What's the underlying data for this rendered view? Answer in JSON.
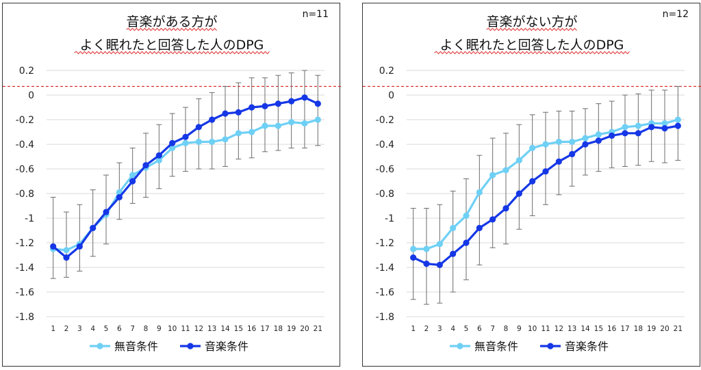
{
  "chart_data": [
    {
      "type": "line",
      "title_lines": [
        "音楽がある方が",
        "よく眠れたと回答した人のDPG"
      ],
      "annotation": "n=11",
      "x": [
        1,
        2,
        3,
        4,
        5,
        6,
        7,
        8,
        9,
        10,
        11,
        12,
        13,
        14,
        15,
        16,
        17,
        18,
        19,
        20,
        21
      ],
      "ylim": [
        -1.8,
        0.2
      ],
      "yticks": [
        "0.2",
        "0",
        "-0.2",
        "-0.4",
        "-0.6",
        "-0.8",
        "-1",
        "-1.2",
        "-1.4",
        "-1.6",
        "-1.8"
      ],
      "reference_line": 0.07,
      "legend_position": "bottom",
      "series": [
        {
          "name": "無音条件",
          "color": "#6fd0f5",
          "values": [
            -1.25,
            -1.26,
            -1.21,
            -1.08,
            -0.97,
            -0.79,
            -0.65,
            -0.59,
            -0.53,
            -0.43,
            -0.39,
            -0.38,
            -0.38,
            -0.36,
            -0.31,
            -0.3,
            -0.25,
            -0.25,
            -0.22,
            -0.23,
            -0.2
          ]
        },
        {
          "name": "音楽条件",
          "color": "#1537e6",
          "values": [
            -1.23,
            -1.32,
            -1.23,
            -1.08,
            -0.95,
            -0.83,
            -0.7,
            -0.57,
            -0.49,
            -0.39,
            -0.34,
            -0.26,
            -0.2,
            -0.15,
            -0.14,
            -0.1,
            -0.09,
            -0.07,
            -0.05,
            -0.02,
            -0.07
          ],
          "error_upper": [
            -0.83,
            -0.95,
            -0.89,
            -0.77,
            -0.65,
            -0.55,
            -0.43,
            -0.31,
            -0.24,
            -0.15,
            -0.1,
            -0.03,
            0.02,
            0.07,
            0.1,
            0.14,
            0.14,
            0.16,
            0.18,
            0.2,
            0.16
          ],
          "error_lower": [
            -1.49,
            -1.48,
            -1.43,
            -1.31,
            -1.21,
            -1.01,
            -0.88,
            -0.83,
            -0.76,
            -0.66,
            -0.62,
            -0.6,
            -0.6,
            -0.58,
            -0.52,
            -0.51,
            -0.46,
            -0.45,
            -0.43,
            -0.43,
            -0.41
          ]
        }
      ]
    },
    {
      "type": "line",
      "title_lines": [
        "音楽がない方が",
        "よく眠れたと回答した人のDPG"
      ],
      "annotation": "n=12",
      "x": [
        1,
        2,
        3,
        4,
        5,
        6,
        7,
        8,
        9,
        10,
        11,
        12,
        13,
        14,
        15,
        16,
        17,
        18,
        19,
        20,
        21
      ],
      "ylim": [
        -1.8,
        0.2
      ],
      "yticks": [
        "0.2",
        "0",
        "-0.2",
        "-0.4",
        "-0.6",
        "-0.8",
        "-1",
        "-1.2",
        "-1.4",
        "-1.6",
        "-1.8"
      ],
      "reference_line": 0.07,
      "legend_position": "bottom",
      "series": [
        {
          "name": "無音条件",
          "color": "#6fd0f5",
          "values": [
            -1.25,
            -1.25,
            -1.21,
            -1.08,
            -0.98,
            -0.79,
            -0.65,
            -0.61,
            -0.53,
            -0.43,
            -0.4,
            -0.38,
            -0.38,
            -0.35,
            -0.32,
            -0.3,
            -0.26,
            -0.25,
            -0.23,
            -0.23,
            -0.2
          ],
          "error_upper": [
            -0.92,
            -0.92,
            -0.89,
            -0.78,
            -0.68,
            -0.49,
            -0.35,
            -0.31,
            -0.24,
            -0.16,
            -0.14,
            -0.13,
            -0.13,
            -0.11,
            -0.07,
            -0.05,
            0.0,
            0.01,
            0.04,
            0.04,
            0.07
          ],
          "error_lower": [
            -1.66,
            -1.7,
            -1.69,
            -1.6,
            -1.5,
            -1.38,
            -1.24,
            -1.21,
            -1.09,
            -0.98,
            -0.89,
            -0.81,
            -0.74,
            -0.65,
            -0.62,
            -0.59,
            -0.58,
            -0.57,
            -0.54,
            -0.55,
            -0.53
          ]
        },
        {
          "name": "音楽条件",
          "color": "#1537e6",
          "values": [
            -1.32,
            -1.37,
            -1.38,
            -1.29,
            -1.2,
            -1.08,
            -1.01,
            -0.92,
            -0.8,
            -0.7,
            -0.62,
            -0.54,
            -0.48,
            -0.4,
            -0.37,
            -0.33,
            -0.31,
            -0.31,
            -0.26,
            -0.27,
            -0.25
          ]
        }
      ]
    }
  ]
}
